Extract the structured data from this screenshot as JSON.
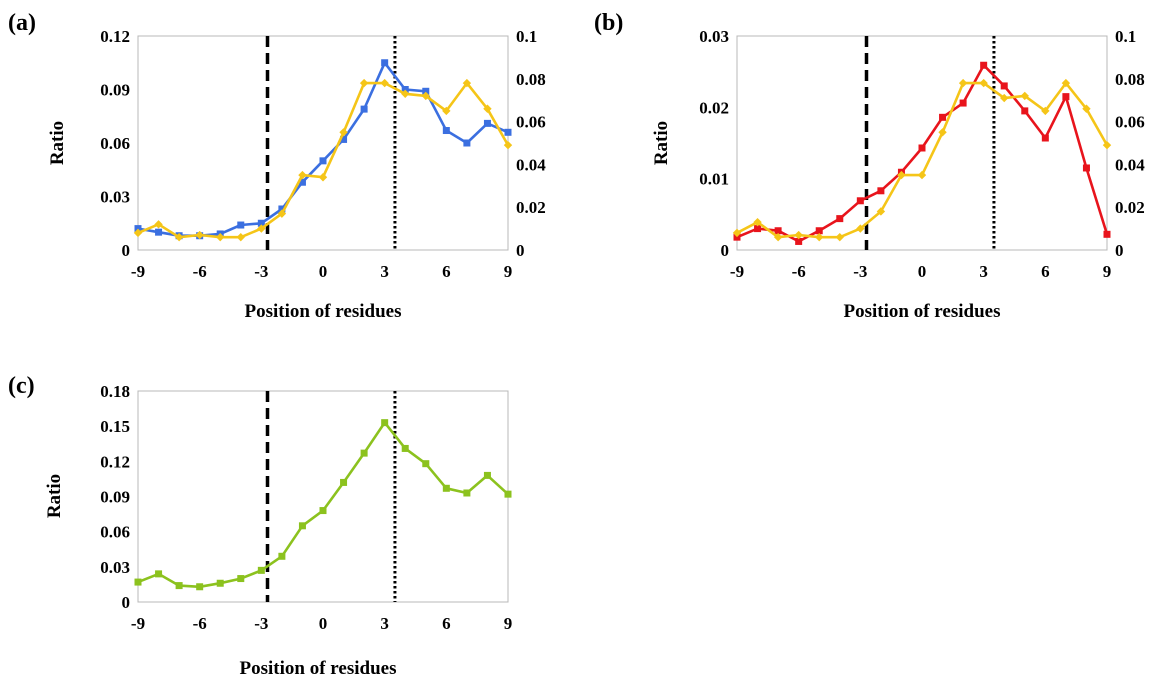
{
  "chart_data": [
    {
      "panel_label": "(a)",
      "type": "line",
      "xlabel": "Position of residues",
      "ylabel": "Ratio",
      "xlim": [
        -9,
        9
      ],
      "xticks": [
        "-9",
        "-6",
        "-3",
        "0",
        "3",
        "6",
        "9"
      ],
      "ylim": [
        0,
        0.12
      ],
      "yticks": [
        "0",
        "0.03",
        "0.06",
        "0.09",
        "0.12"
      ],
      "y2lim": [
        0,
        0.1
      ],
      "y2ticks": [
        "0",
        "0.02",
        "0.04",
        "0.06",
        "0.08",
        "0.1"
      ],
      "grid": false,
      "vlines": [
        {
          "x": -2.7,
          "style": "dashed"
        },
        {
          "x": 3.5,
          "style": "dotted"
        }
      ],
      "x": [
        -9,
        -8,
        -7,
        -6,
        -5,
        -4,
        -3,
        -2,
        -1,
        0,
        1,
        2,
        3,
        4,
        5,
        6,
        7,
        8,
        9
      ],
      "series": [
        {
          "color": "#3b6fe0",
          "marker": "square",
          "axis": "left",
          "values": [
            0.012,
            0.01,
            0.008,
            0.008,
            0.009,
            0.014,
            0.015,
            0.023,
            0.038,
            0.05,
            0.062,
            0.079,
            0.105,
            0.09,
            0.089,
            0.067,
            0.06,
            0.071,
            0.066
          ]
        },
        {
          "color": "#f5c518",
          "marker": "diamond",
          "axis": "right",
          "values": [
            0.008,
            0.012,
            0.006,
            0.007,
            0.006,
            0.006,
            0.01,
            0.017,
            0.035,
            0.034,
            0.055,
            0.078,
            0.078,
            0.073,
            0.072,
            0.065,
            0.078,
            0.066,
            0.049
          ]
        }
      ]
    },
    {
      "panel_label": "(b)",
      "type": "line",
      "xlabel": "Position of residues",
      "ylabel": "Ratio",
      "xlim": [
        -9,
        9
      ],
      "xticks": [
        "-9",
        "-6",
        "-3",
        "0",
        "3",
        "6",
        "9"
      ],
      "ylim": [
        0,
        0.03
      ],
      "yticks": [
        "0",
        "0.01",
        "0.02",
        "0.03"
      ],
      "y2lim": [
        0,
        0.1
      ],
      "y2ticks": [
        "0",
        "0.02",
        "0.04",
        "0.06",
        "0.08",
        "0.1"
      ],
      "grid": false,
      "vlines": [
        {
          "x": -2.7,
          "style": "dashed"
        },
        {
          "x": 3.5,
          "style": "dotted"
        }
      ],
      "x": [
        -9,
        -8,
        -7,
        -6,
        -5,
        -4,
        -3,
        -2,
        -1,
        0,
        1,
        2,
        3,
        4,
        5,
        6,
        7,
        8,
        9
      ],
      "series": [
        {
          "color": "#e8141c",
          "marker": "square",
          "axis": "left",
          "values": [
            0.0018,
            0.003,
            0.0027,
            0.0012,
            0.0027,
            0.0044,
            0.0069,
            0.0083,
            0.0109,
            0.0143,
            0.0186,
            0.0206,
            0.0259,
            0.023,
            0.0195,
            0.0157,
            0.0215,
            0.0115,
            0.0022
          ]
        },
        {
          "color": "#f5c518",
          "marker": "diamond",
          "axis": "right",
          "values": [
            0.008,
            0.013,
            0.006,
            0.007,
            0.006,
            0.006,
            0.01,
            0.018,
            0.035,
            0.035,
            0.055,
            0.078,
            0.078,
            0.071,
            0.072,
            0.065,
            0.078,
            0.066,
            0.049
          ]
        }
      ]
    },
    {
      "panel_label": "(c)",
      "type": "line",
      "xlabel": "Position of residues",
      "ylabel": "Ratio",
      "xlim": [
        -9,
        9
      ],
      "xticks": [
        "-9",
        "-6",
        "-3",
        "0",
        "3",
        "6",
        "9"
      ],
      "ylim": [
        0,
        0.18
      ],
      "yticks": [
        "0",
        "0.03",
        "0.06",
        "0.09",
        "0.12",
        "0.15",
        "0.18"
      ],
      "grid": false,
      "vlines": [
        {
          "x": -2.7,
          "style": "dashed"
        },
        {
          "x": 3.5,
          "style": "dotted"
        }
      ],
      "x": [
        -9,
        -8,
        -7,
        -6,
        -5,
        -4,
        -3,
        -2,
        -1,
        0,
        1,
        2,
        3,
        4,
        5,
        6,
        7,
        8,
        9
      ],
      "series": [
        {
          "color": "#8cc21e",
          "marker": "square",
          "axis": "left",
          "values": [
            0.017,
            0.024,
            0.014,
            0.013,
            0.016,
            0.02,
            0.027,
            0.039,
            0.065,
            0.078,
            0.102,
            0.127,
            0.153,
            0.131,
            0.118,
            0.097,
            0.093,
            0.108,
            0.092
          ]
        }
      ]
    }
  ]
}
